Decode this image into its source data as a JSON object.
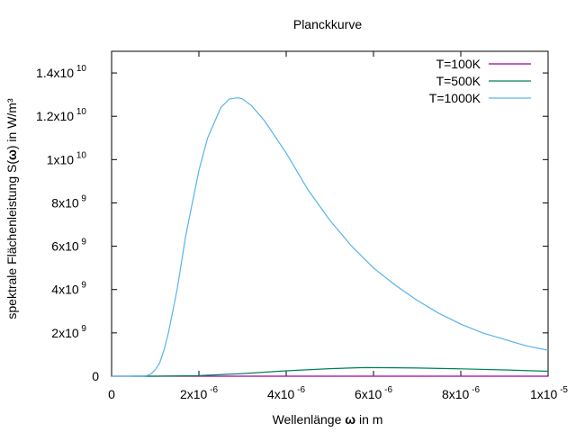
{
  "chart_data": {
    "type": "line",
    "title": "Planckkurve",
    "xlabel": {
      "pre": "Wellenlänge ",
      "sym": "ω",
      "post": " in m"
    },
    "ylabel": {
      "pre": "spektrale Flächenleistung S(",
      "sym": "ω",
      "post": ") in W/m³"
    },
    "xlim": [
      0,
      1e-05
    ],
    "ylim": [
      0,
      15000000000.0
    ],
    "x_ticks": [
      {
        "value": 0,
        "mant": "0",
        "exp": ""
      },
      {
        "value": 2e-06,
        "mant": "2x10",
        "exp": "-6"
      },
      {
        "value": 4e-06,
        "mant": "4x10",
        "exp": "-6"
      },
      {
        "value": 6e-06,
        "mant": "6x10",
        "exp": "-6"
      },
      {
        "value": 8e-06,
        "mant": "8x10",
        "exp": "-6"
      },
      {
        "value": 1e-05,
        "mant": "1x10",
        "exp": "-5"
      }
    ],
    "y_ticks": [
      {
        "value": 0,
        "mant": "0",
        "exp": ""
      },
      {
        "value": 2000000000.0,
        "mant": "2x10",
        "exp": "9"
      },
      {
        "value": 4000000000.0,
        "mant": "4x10",
        "exp": "9"
      },
      {
        "value": 6000000000.0,
        "mant": "6x10",
        "exp": "9"
      },
      {
        "value": 8000000000.0,
        "mant": "8x10",
        "exp": "9"
      },
      {
        "value": 10000000000.0,
        "mant": "1x10",
        "exp": "10"
      },
      {
        "value": 12000000000.0,
        "mant": "1.2x10",
        "exp": "10"
      },
      {
        "value": 14000000000.0,
        "mant": "1.4x10",
        "exp": "10"
      }
    ],
    "grid": false,
    "legend": "top-right",
    "series": [
      {
        "name": "T=100K",
        "color": "#a000a0",
        "x": [
          0,
          1e-05
        ],
        "y": [
          0,
          0
        ]
      },
      {
        "name": "T=500K",
        "color": "#00805a",
        "x": [
          4.5e-07,
          1e-06,
          2e-06,
          3e-06,
          4e-06,
          5e-06,
          5.8e-06,
          6.5e-06,
          7e-06,
          8e-06,
          9e-06,
          1e-05
        ],
        "y": [
          0,
          1000000.0,
          25000000.0,
          120000000.0,
          250000000.0,
          350000000.0,
          400000000.0,
          390000000.0,
          380000000.0,
          340000000.0,
          290000000.0,
          230000000.0
        ]
      },
      {
        "name": "T=1000K",
        "color": "#56b4e9",
        "x": [
          0,
          7e-07,
          8e-07,
          9e-07,
          1e-06,
          1.1e-06,
          1.2e-06,
          1.3e-06,
          1.5e-06,
          1.7e-06,
          2e-06,
          2.2e-06,
          2.5e-06,
          2.7e-06,
          2.9e-06,
          3e-06,
          3.2e-06,
          3.5e-06,
          4e-06,
          4.5e-06,
          5e-06,
          5.5e-06,
          6e-06,
          6.5e-06,
          7e-06,
          7.5e-06,
          8e-06,
          8.5e-06,
          9e-06,
          9.5e-06,
          1e-05
        ],
        "y": [
          0,
          0,
          20000000.0,
          100000000.0,
          300000000.0,
          600000000.0,
          1200000000.0,
          2000000000.0,
          4000000000.0,
          6500000000.0,
          9500000000.0,
          11000000000.0,
          12400000000.0,
          12800000000.0,
          12850000000.0,
          12800000000.0,
          12500000000.0,
          11800000000.0,
          10300000000.0,
          8600000000.0,
          7200000000.0,
          6000000000.0,
          5000000000.0,
          4200000000.0,
          3500000000.0,
          2900000000.0,
          2400000000.0,
          2000000000.0,
          1700000000.0,
          1400000000.0,
          1200000000.0
        ]
      }
    ]
  }
}
